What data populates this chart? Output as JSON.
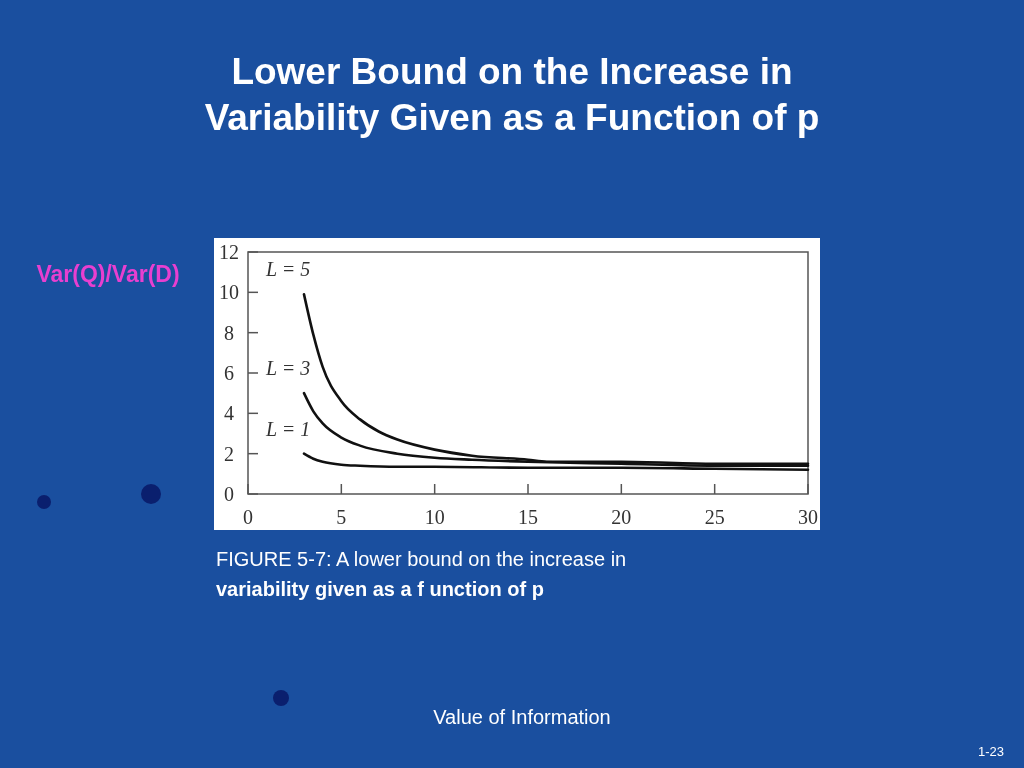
{
  "chart_data": {
    "type": "line",
    "title": "Lower Bound on the Increase in Variability Given as a Function of p",
    "ylabel": "Var(Q)/Var(D)",
    "annotations": [
      "FIGURE 5-7: A lower bound on the increase in variability given as a f unction of p",
      "Value of Information",
      "1-23"
    ],
    "xlim": [
      0,
      30
    ],
    "xticks": [
      0,
      5,
      10,
      15,
      20,
      25,
      30
    ],
    "ylim": [
      0,
      12
    ],
    "yticks": [
      0,
      2,
      4,
      6,
      8,
      10,
      12
    ],
    "grid": false,
    "series": [
      {
        "name": "L = 5",
        "color": "#111111",
        "x": [
          3,
          3.5,
          4,
          5,
          6,
          7,
          8,
          10,
          12,
          15,
          16,
          20,
          25,
          30
        ],
        "values": [
          9.9,
          7.9,
          6.3,
          4.6,
          3.7,
          3.1,
          2.7,
          2.2,
          1.9,
          1.7,
          1.6,
          1.6,
          1.5,
          1.5
        ]
      },
      {
        "name": "L = 3",
        "color": "#111111",
        "x": [
          3,
          3.5,
          4,
          5,
          6,
          8,
          10,
          12,
          15,
          20,
          25,
          30
        ],
        "values": [
          5.0,
          4.1,
          3.5,
          2.8,
          2.4,
          2.0,
          1.8,
          1.7,
          1.6,
          1.5,
          1.4,
          1.4
        ]
      },
      {
        "name": "L = 1",
        "color": "#111111",
        "x": [
          3,
          3.5,
          4,
          5,
          6,
          8,
          10,
          15,
          20,
          25,
          30
        ],
        "values": [
          2.0,
          1.75,
          1.6,
          1.45,
          1.4,
          1.35,
          1.35,
          1.3,
          1.3,
          1.25,
          1.2
        ]
      }
    ]
  }
}
